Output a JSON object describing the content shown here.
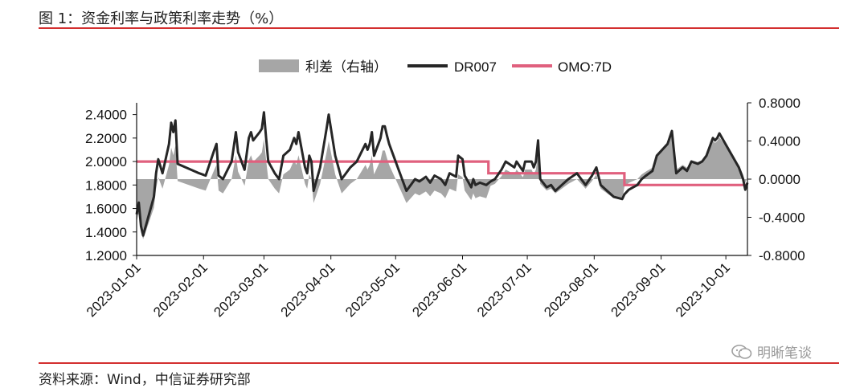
{
  "header": {
    "title": "图 1：资金利率与政策利率走势（%）"
  },
  "footer": {
    "source": "资料来源：Wind，中信证券研究部",
    "watermark": "明晰笔谈"
  },
  "colors": {
    "rule": "#d32f2f",
    "dr007": "#262626",
    "omo": "#e0607e",
    "spread": "#a6a6a6"
  },
  "chart_data": {
    "type": "line",
    "title": "",
    "legend": {
      "placement": "top",
      "items": [
        "利差（右轴）",
        "DR007",
        "OMO:7D"
      ]
    },
    "left_axis": {
      "ylim": [
        1.2,
        2.5
      ],
      "ticks": [
        "1.2000",
        "1.4000",
        "1.6000",
        "1.8000",
        "2.0000",
        "2.2000",
        "2.4000"
      ]
    },
    "right_axis": {
      "ylim": [
        -0.8,
        0.8
      ],
      "ticks": [
        "-0.8000",
        "-0.4000",
        "0.0000",
        "0.4000",
        "0.8000"
      ]
    },
    "x_ticks": [
      "2023-01-01",
      "2023-02-01",
      "2023-03-01",
      "2023-04-01",
      "2023-05-01",
      "2023-06-01",
      "2023-07-01",
      "2023-08-01",
      "2023-09-01",
      "2023-10-01"
    ],
    "x_range": [
      "2023-01-01",
      "2023-10-11"
    ],
    "series": [
      {
        "name": "DR007",
        "axis": "left",
        "type": "line",
        "points": [
          [
            "2023-01-01",
            1.55
          ],
          [
            "2023-01-02",
            1.65
          ],
          [
            "2023-01-03",
            1.45
          ],
          [
            "2023-01-04",
            1.37
          ],
          [
            "2023-01-06",
            1.5
          ],
          [
            "2023-01-09",
            1.7
          ],
          [
            "2023-01-10",
            1.9
          ],
          [
            "2023-01-11",
            2.02
          ],
          [
            "2023-01-13",
            1.9
          ],
          [
            "2023-01-16",
            2.15
          ],
          [
            "2023-01-17",
            2.33
          ],
          [
            "2023-01-18",
            2.25
          ],
          [
            "2023-01-19",
            2.35
          ],
          [
            "2023-01-20",
            1.98
          ],
          [
            "2023-01-30",
            1.9
          ],
          [
            "2023-02-02",
            1.88
          ],
          [
            "2023-02-06",
            2.1
          ],
          [
            "2023-02-07",
            2.15
          ],
          [
            "2023-02-08",
            1.88
          ],
          [
            "2023-02-10",
            1.85
          ],
          [
            "2023-02-14",
            2.0
          ],
          [
            "2023-02-16",
            2.25
          ],
          [
            "2023-02-17",
            2.08
          ],
          [
            "2023-02-20",
            1.93
          ],
          [
            "2023-02-22",
            2.2
          ],
          [
            "2023-02-23",
            2.25
          ],
          [
            "2023-02-24",
            2.18
          ],
          [
            "2023-02-27",
            2.25
          ],
          [
            "2023-02-28",
            2.28
          ],
          [
            "2023-03-01",
            2.42
          ],
          [
            "2023-03-02",
            2.2
          ],
          [
            "2023-03-03",
            2.0
          ],
          [
            "2023-03-06",
            1.9
          ],
          [
            "2023-03-08",
            1.85
          ],
          [
            "2023-03-10",
            2.05
          ],
          [
            "2023-03-13",
            2.1
          ],
          [
            "2023-03-15",
            2.2
          ],
          [
            "2023-03-16",
            2.15
          ],
          [
            "2023-03-17",
            2.25
          ],
          [
            "2023-03-20",
            1.95
          ],
          [
            "2023-03-21",
            1.9
          ],
          [
            "2023-03-22",
            2.05
          ],
          [
            "2023-03-23",
            2.0
          ],
          [
            "2023-03-24",
            1.75
          ],
          [
            "2023-03-27",
            1.95
          ],
          [
            "2023-03-30",
            2.28
          ],
          [
            "2023-03-31",
            2.4
          ],
          [
            "2023-04-03",
            2.05
          ],
          [
            "2023-04-06",
            1.85
          ],
          [
            "2023-04-10",
            1.95
          ],
          [
            "2023-04-13",
            2.0
          ],
          [
            "2023-04-17",
            2.15
          ],
          [
            "2023-04-18",
            2.1
          ],
          [
            "2023-04-19",
            2.15
          ],
          [
            "2023-04-20",
            2.25
          ],
          [
            "2023-04-21",
            2.05
          ],
          [
            "2023-04-24",
            2.2
          ],
          [
            "2023-04-25",
            2.3
          ],
          [
            "2023-04-26",
            2.3
          ],
          [
            "2023-04-27",
            2.22
          ],
          [
            "2023-04-28",
            2.15
          ],
          [
            "2023-05-04",
            1.85
          ],
          [
            "2023-05-06",
            1.75
          ],
          [
            "2023-05-08",
            1.8
          ],
          [
            "2023-05-10",
            1.85
          ],
          [
            "2023-05-12",
            1.83
          ],
          [
            "2023-05-15",
            1.87
          ],
          [
            "2023-05-17",
            1.82
          ],
          [
            "2023-05-19",
            1.88
          ],
          [
            "2023-05-22",
            1.85
          ],
          [
            "2023-05-24",
            1.8
          ],
          [
            "2023-05-26",
            1.9
          ],
          [
            "2023-05-29",
            1.87
          ],
          [
            "2023-05-30",
            2.05
          ],
          [
            "2023-06-01",
            2.02
          ],
          [
            "2023-06-02",
            1.88
          ],
          [
            "2023-06-05",
            1.78
          ],
          [
            "2023-06-06",
            1.85
          ],
          [
            "2023-06-07",
            1.8
          ],
          [
            "2023-06-09",
            1.82
          ],
          [
            "2023-06-12",
            1.8
          ],
          [
            "2023-06-14",
            1.83
          ],
          [
            "2023-06-16",
            1.85
          ],
          [
            "2023-06-19",
            1.93
          ],
          [
            "2023-06-21",
            2.0
          ],
          [
            "2023-06-25",
            1.95
          ],
          [
            "2023-06-26",
            2.0
          ],
          [
            "2023-06-29",
            1.92
          ],
          [
            "2023-06-30",
            2.0
          ],
          [
            "2023-07-03",
            2.0
          ],
          [
            "2023-07-04",
            1.95
          ],
          [
            "2023-07-05",
            2.0
          ],
          [
            "2023-07-06",
            2.18
          ],
          [
            "2023-07-07",
            1.85
          ],
          [
            "2023-07-10",
            1.78
          ],
          [
            "2023-07-12",
            1.8
          ],
          [
            "2023-07-14",
            1.75
          ],
          [
            "2023-07-17",
            1.8
          ],
          [
            "2023-07-20",
            1.85
          ],
          [
            "2023-07-24",
            1.9
          ],
          [
            "2023-07-26",
            1.85
          ],
          [
            "2023-07-28",
            1.8
          ],
          [
            "2023-07-31",
            1.88
          ],
          [
            "2023-08-02",
            1.95
          ],
          [
            "2023-08-04",
            1.8
          ],
          [
            "2023-08-07",
            1.75
          ],
          [
            "2023-08-10",
            1.7
          ],
          [
            "2023-08-14",
            1.68
          ],
          [
            "2023-08-15",
            1.72
          ],
          [
            "2023-08-17",
            1.76
          ],
          [
            "2023-08-21",
            1.8
          ],
          [
            "2023-08-23",
            1.85
          ],
          [
            "2023-08-25",
            1.88
          ],
          [
            "2023-08-28",
            1.92
          ],
          [
            "2023-08-30",
            2.05
          ],
          [
            "2023-09-04",
            2.15
          ],
          [
            "2023-09-06",
            2.26
          ],
          [
            "2023-09-08",
            1.9
          ],
          [
            "2023-09-11",
            1.95
          ],
          [
            "2023-09-13",
            1.92
          ],
          [
            "2023-09-15",
            2.0
          ],
          [
            "2023-09-18",
            1.98
          ],
          [
            "2023-09-20",
            2.0
          ],
          [
            "2023-09-22",
            2.05
          ],
          [
            "2023-09-25",
            2.2
          ],
          [
            "2023-09-26",
            2.18
          ],
          [
            "2023-09-27",
            2.2
          ],
          [
            "2023-09-28",
            2.24
          ],
          [
            "2023-10-07",
            1.95
          ],
          [
            "2023-10-09",
            1.85
          ],
          [
            "2023-10-10",
            1.76
          ],
          [
            "2023-10-11",
            1.82
          ]
        ]
      },
      {
        "name": "OMO:7D",
        "axis": "left",
        "type": "step",
        "points": [
          [
            "2023-01-01",
            2.0
          ],
          [
            "2023-06-13",
            2.0
          ],
          [
            "2023-06-13",
            1.9
          ],
          [
            "2023-08-15",
            1.9
          ],
          [
            "2023-08-15",
            1.8
          ],
          [
            "2023-10-11",
            1.8
          ]
        ]
      },
      {
        "name": "利差（右轴）",
        "axis": "right",
        "type": "area",
        "derived_from": [
          "DR007",
          "OMO:7D"
        ]
      }
    ]
  }
}
